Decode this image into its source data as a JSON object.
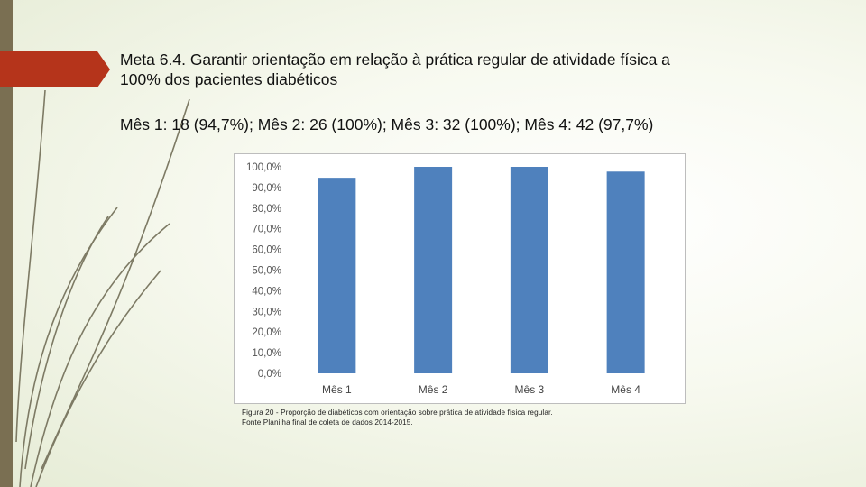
{
  "slide": {
    "title_line1": "Meta 6.4. Garantir orientação em relação à prática regular de atividade física a",
    "title_line2": "100% dos pacientes diabéticos",
    "subtitle": "Mês 1: 18 (94,7%); Mês 2: 26 (100%); Mês 3: 32 (100%); Mês 4: 42 (97,7%)",
    "caption_line1": "Figura 20 - Proporção de diabéticos com orientação sobre prática de atividade física regular.",
    "caption_line2": "Fonte Planilha final de coleta de dados 2014-2015.",
    "colors": {
      "accent": "#b5341b",
      "sidebar": "#7a6f52",
      "bar": "#4f81bd"
    }
  },
  "chart_data": {
    "type": "bar",
    "categories": [
      "Mês 1",
      "Mês 2",
      "Mês 3",
      "Mês 4"
    ],
    "values": [
      94.7,
      100,
      100,
      97.7
    ],
    "y_ticks": [
      "0,0%",
      "10,0%",
      "20,0%",
      "30,0%",
      "40,0%",
      "50,0%",
      "60,0%",
      "70,0%",
      "80,0%",
      "90,0%",
      "100,0%"
    ],
    "ylim": [
      0,
      100
    ],
    "grid": false,
    "legend": "none",
    "bar_color": "#4f81bd"
  }
}
